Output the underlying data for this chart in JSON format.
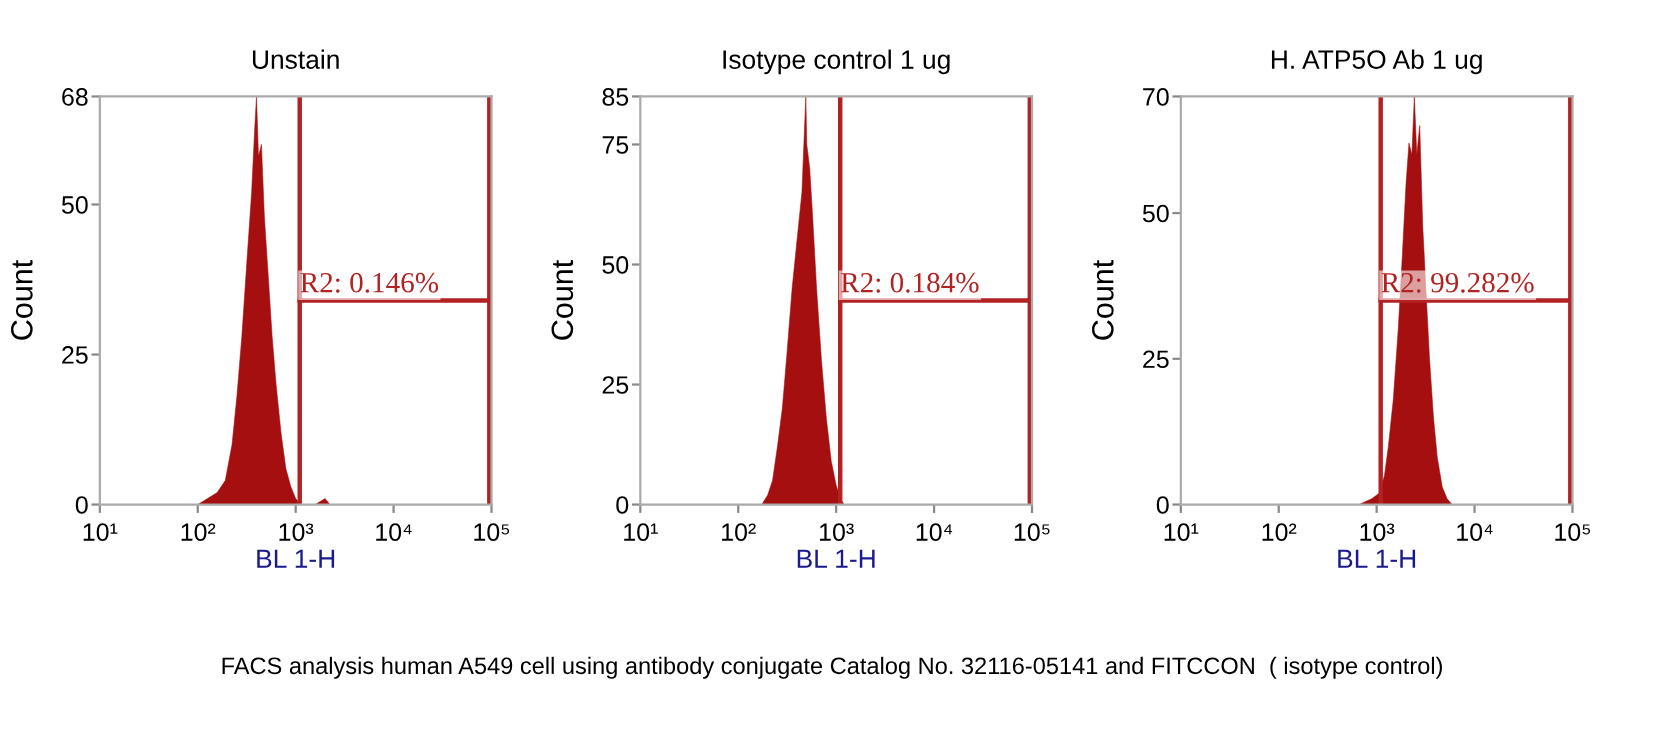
{
  "chart_data": [
    {
      "type": "area",
      "title": "Unstain",
      "xlabel": "BL 1-H",
      "ylabel": "Count",
      "log": "x",
      "grid": false,
      "xlim": [
        10,
        100000
      ],
      "xticks": [
        {
          "value": 10,
          "label": "10¹"
        },
        {
          "value": 100,
          "label": "10²"
        },
        {
          "value": 1000,
          "label": "10³"
        },
        {
          "value": 10000,
          "label": "10⁴"
        },
        {
          "value": 100000,
          "label": "10⁵"
        }
      ],
      "ylim": [
        0,
        68
      ],
      "yticks": [
        0,
        25,
        50,
        68
      ],
      "ref_lines": [
        {
          "axis": "x",
          "value": 1100,
          "color": "#b22222"
        },
        {
          "axis": "x",
          "value": 95000,
          "color": "#b22222"
        }
      ],
      "annotations": [
        "R2: 0.146%"
      ],
      "series": [
        {
          "color": "#a50f0f",
          "x": [
            100,
            126,
            158,
            191,
            224,
            251,
            282,
            316,
            355,
            380,
            398,
            417,
            447,
            479,
            525,
            575,
            631,
            708,
            794,
            891,
            1000,
            1122,
            1585,
            1995,
            2239
          ],
          "values": [
            0,
            1,
            2,
            4,
            10,
            18,
            28,
            40,
            52,
            62,
            68,
            58,
            60,
            48,
            38,
            28,
            20,
            12,
            6,
            3,
            1,
            0,
            0,
            1,
            0
          ]
        }
      ]
    },
    {
      "type": "area",
      "title": "Isotype control 1 ug",
      "xlabel": "BL 1-H",
      "ylabel": "Count",
      "log": "x",
      "grid": false,
      "xlim": [
        10,
        100000
      ],
      "xticks": [
        {
          "value": 10,
          "label": "10¹"
        },
        {
          "value": 100,
          "label": "10²"
        },
        {
          "value": 1000,
          "label": "10³"
        },
        {
          "value": 10000,
          "label": "10⁴"
        },
        {
          "value": 100000,
          "label": "10⁵"
        }
      ],
      "ylim": [
        0,
        85
      ],
      "yticks": [
        0,
        25,
        50,
        75,
        85
      ],
      "ref_lines": [
        {
          "axis": "x",
          "value": 1100,
          "color": "#b22222"
        },
        {
          "axis": "x",
          "value": 95000,
          "color": "#b22222"
        }
      ],
      "annotations": [
        "R2: 0.184%"
      ],
      "series": [
        {
          "color": "#a50f0f",
          "x": [
            174,
            200,
            224,
            251,
            282,
            316,
            355,
            398,
            447,
            490,
            501,
            537,
            575,
            631,
            708,
            794,
            891,
            1000,
            1122,
            1202,
            1585
          ],
          "values": [
            0,
            2,
            5,
            12,
            20,
            32,
            45,
            55,
            65,
            85,
            75,
            70,
            60,
            45,
            30,
            18,
            9,
            4,
            1,
            0,
            0
          ]
        }
      ]
    },
    {
      "type": "area",
      "title": "H. ATP5O Ab 1 ug",
      "xlabel": "BL 1-H",
      "ylabel": "Count",
      "log": "x",
      "grid": false,
      "xlim": [
        10,
        100000
      ],
      "xticks": [
        {
          "value": 10,
          "label": "10¹"
        },
        {
          "value": 100,
          "label": "10²"
        },
        {
          "value": 1000,
          "label": "10³"
        },
        {
          "value": 10000,
          "label": "10⁴"
        },
        {
          "value": 100000,
          "label": "10⁵"
        }
      ],
      "ylim": [
        0,
        70
      ],
      "yticks": [
        0,
        25,
        50,
        70
      ],
      "ref_lines": [
        {
          "axis": "x",
          "value": 1100,
          "color": "#b22222"
        },
        {
          "axis": "x",
          "value": 95000,
          "color": "#b22222"
        }
      ],
      "annotations": [
        "R2: 99.282%",
        "FACS analysis human A549 cell using antibody conjugate Catalog No. 32116-05141 and FITCCON  ( isotype control)"
      ],
      "series": [
        {
          "color": "#a50f0f",
          "x": [
            661,
            891,
            1072,
            1202,
            1318,
            1479,
            1660,
            1820,
            1995,
            2138,
            2291,
            2427,
            2570,
            2754,
            2951,
            3162,
            3467,
            3802,
            4169,
            4677,
            5248,
            5888
          ],
          "values": [
            0,
            1,
            2,
            5,
            10,
            18,
            30,
            42,
            55,
            62,
            60,
            70,
            60,
            65,
            48,
            38,
            25,
            15,
            8,
            3,
            1,
            0
          ]
        }
      ]
    }
  ]
}
